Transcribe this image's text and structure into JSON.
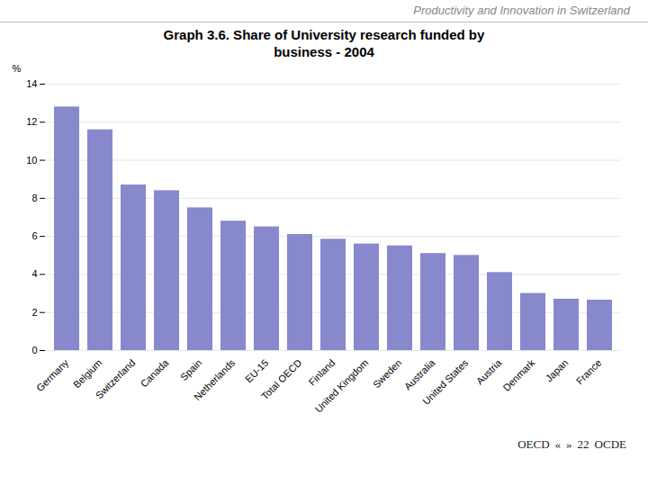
{
  "chart_data": {
    "type": "bar",
    "title": "Graph 3.6. Share of University research funded by\nbusiness - 2004",
    "subtitle": "Productivity and Innovation in Switzerland",
    "y_label": "%",
    "categories": [
      "Germany",
      "Belgium",
      "Switzerland",
      "Canada",
      "Spain",
      "Netherlands",
      "EU-15",
      "Total OECD",
      "Finland",
      "United Kingdom",
      "Sweden",
      "Australia",
      "United States",
      "Austria",
      "Denmark",
      "Japan",
      "France"
    ],
    "values": [
      12.8,
      11.6,
      8.7,
      8.4,
      7.5,
      6.8,
      6.5,
      6.1,
      5.85,
      5.6,
      5.5,
      5.1,
      5.0,
      4.1,
      3.0,
      2.7,
      2.65
    ],
    "color": "#8888cc",
    "ylim": [
      0,
      14
    ],
    "yticks": [
      0,
      2,
      4,
      6,
      8,
      10,
      12,
      14
    ],
    "grid": true,
    "annotations": [
      "OECD",
      "«",
      "»",
      "22",
      "OCDE"
    ]
  }
}
